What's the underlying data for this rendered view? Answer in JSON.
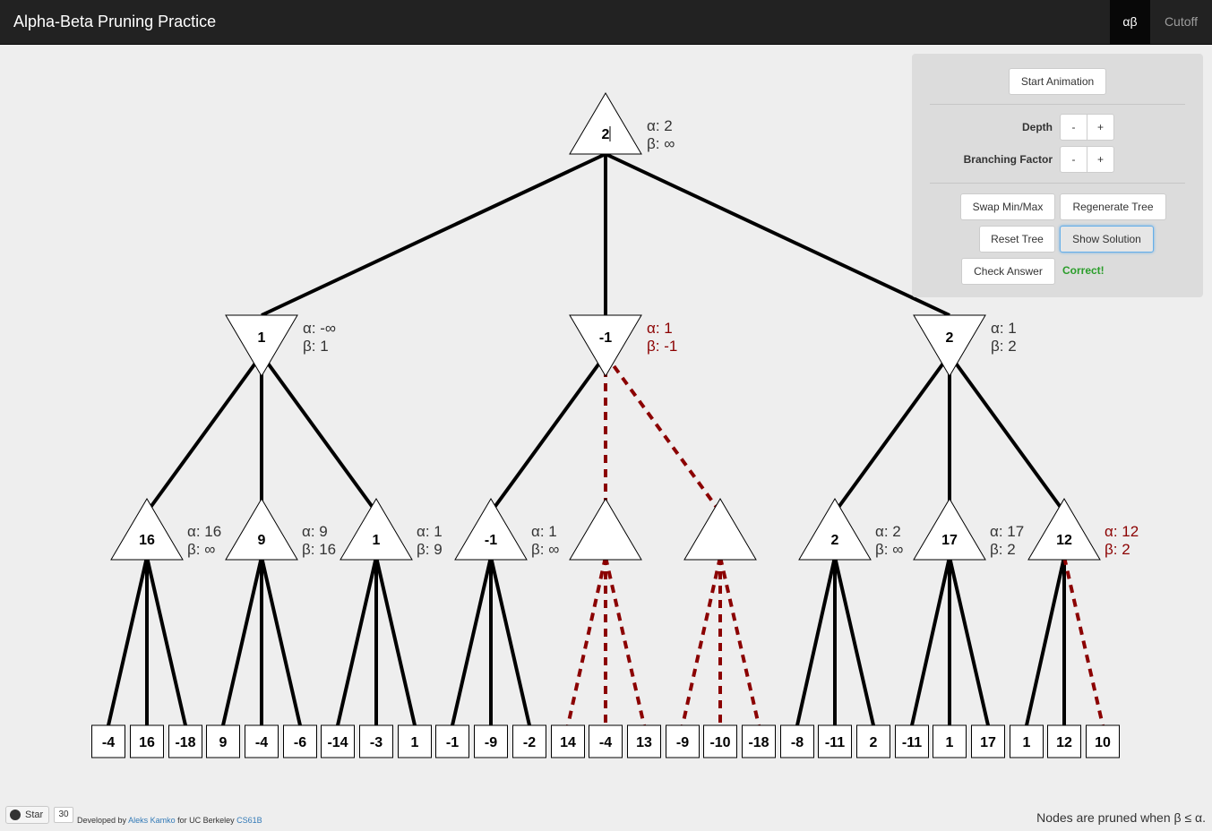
{
  "navbar": {
    "brand": "Alpha-Beta Pruning Practice",
    "items": [
      {
        "label": "αβ",
        "active": true
      },
      {
        "label": "Cutoff",
        "active": false
      }
    ]
  },
  "panel": {
    "start_animation": "Start Animation",
    "depth_label": "Depth",
    "branching_label": "Branching Factor",
    "minus": "-",
    "plus": "+",
    "swap": "Swap Min/Max",
    "regenerate": "Regenerate Tree",
    "reset": "Reset Tree",
    "show_solution": "Show Solution",
    "check_answer": "Check Answer",
    "status": "Correct!",
    "status_color": "#2a9d2a"
  },
  "tree": {
    "colors": {
      "edge": "#000000",
      "pruned": "#8b0000",
      "pruned_text": "#8b0000",
      "text": "#333333"
    },
    "root": {
      "value": "2",
      "type": "max",
      "alpha": "2",
      "beta": "∞",
      "pruned": false
    },
    "level1": [
      {
        "value": "1",
        "type": "min",
        "alpha": "-∞",
        "beta": "1",
        "pruned": false
      },
      {
        "value": "-1",
        "type": "min",
        "alpha": "1",
        "beta": "-1",
        "pruned": true
      },
      {
        "value": "2",
        "type": "min",
        "alpha": "1",
        "beta": "2",
        "pruned": false
      }
    ],
    "level2": [
      {
        "value": "16",
        "type": "max",
        "alpha": "16",
        "beta": "∞"
      },
      {
        "value": "9",
        "type": "max",
        "alpha": "9",
        "beta": "16"
      },
      {
        "value": "1",
        "type": "max",
        "alpha": "1",
        "beta": "9"
      },
      {
        "value": "-1",
        "type": "max",
        "alpha": "1",
        "beta": "∞"
      },
      {
        "value": "",
        "type": "max",
        "alpha": "",
        "beta": ""
      },
      {
        "value": "",
        "type": "max",
        "alpha": "",
        "beta": ""
      },
      {
        "value": "2",
        "type": "max",
        "alpha": "2",
        "beta": "∞"
      },
      {
        "value": "17",
        "type": "max",
        "alpha": "17",
        "beta": "2"
      },
      {
        "value": "12",
        "type": "max",
        "alpha": "12",
        "beta": "2",
        "pruned": true
      }
    ],
    "leaves": [
      "-4",
      "16",
      "-18",
      "9",
      "-4",
      "-6",
      "-14",
      "-3",
      "1",
      "-1",
      "-9",
      "-2",
      "14",
      "-4",
      "13",
      "-9",
      "-10",
      "-18",
      "-8",
      "-11",
      "2",
      "-11",
      "1",
      "17",
      "1",
      "12",
      "10"
    ],
    "pruned_edges": {
      "root_to_l1": [],
      "l1_to_l2": [
        4,
        5
      ],
      "l2_to_leaf": [
        12,
        13,
        14,
        15,
        16,
        17,
        26
      ]
    }
  },
  "footer": {
    "star": "Star",
    "star_count": "30",
    "developed_by": "Developed by",
    "author": "Aleks Kamko",
    "for_text": "for UC Berkeley",
    "course": "CS61B",
    "prune_rule": "Nodes are pruned when β ≤ α."
  }
}
